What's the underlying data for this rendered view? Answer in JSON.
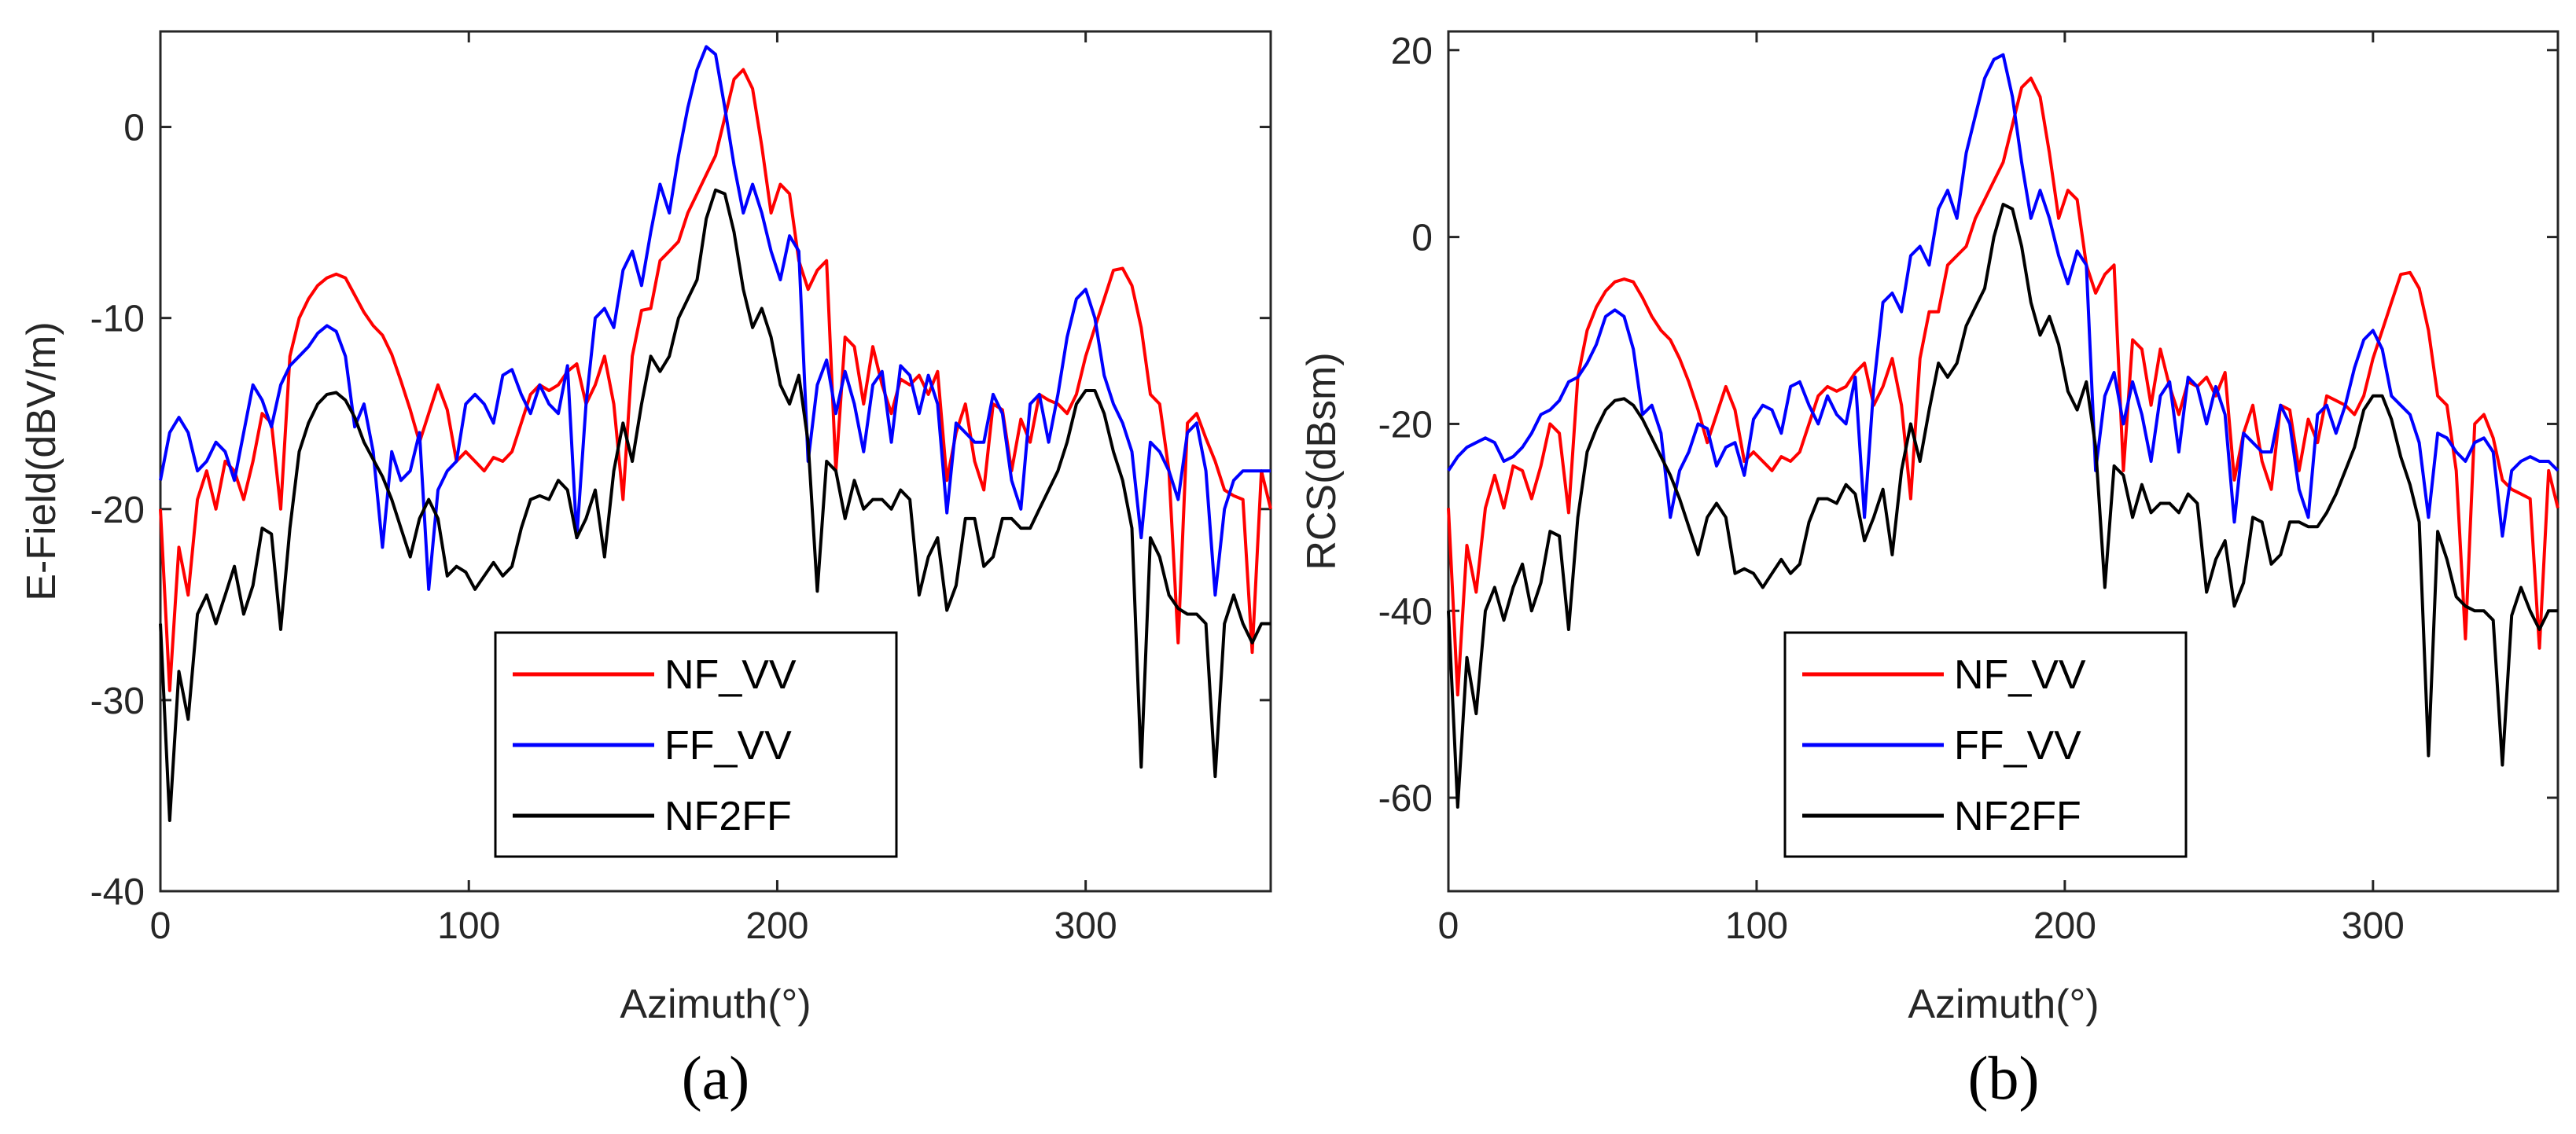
{
  "chart_data": [
    {
      "panel": "(a)",
      "type": "line",
      "title": "",
      "xlabel": "Azimuth(°)",
      "ylabel": "E-Field(dBV/m)",
      "xlim": [
        0,
        360
      ],
      "ylim": [
        -40,
        5
      ],
      "xticks": [
        0,
        100,
        200,
        300
      ],
      "yticks": [
        0,
        -10,
        -20,
        -30,
        -40
      ],
      "grid": false,
      "legend_position": "bottom-right",
      "x": [
        0,
        3,
        6,
        9,
        12,
        15,
        18,
        21,
        24,
        27,
        30,
        33,
        36,
        39,
        42,
        45,
        48,
        51,
        54,
        57,
        60,
        63,
        66,
        69,
        72,
        75,
        78,
        81,
        84,
        87,
        90,
        93,
        96,
        99,
        102,
        105,
        108,
        111,
        114,
        117,
        120,
        123,
        126,
        129,
        132,
        135,
        138,
        141,
        144,
        147,
        150,
        153,
        156,
        159,
        162,
        165,
        168,
        171,
        174,
        177,
        180,
        183,
        186,
        189,
        192,
        195,
        198,
        201,
        204,
        207,
        210,
        213,
        216,
        219,
        222,
        225,
        228,
        231,
        234,
        237,
        240,
        243,
        246,
        249,
        252,
        255,
        258,
        261,
        264,
        267,
        270,
        273,
        276,
        279,
        282,
        285,
        288,
        291,
        294,
        297,
        300,
        303,
        306,
        309,
        312,
        315,
        318,
        321,
        324,
        327,
        330,
        333,
        336,
        339,
        342,
        345,
        348,
        351,
        354,
        357,
        360
      ],
      "series": [
        {
          "name": "NF_VV",
          "color": "#ff0000",
          "values": [
            -20.0,
            -29.5,
            -22.0,
            -24.5,
            -19.5,
            -18.0,
            -20.0,
            -17.5,
            -18.0,
            -19.5,
            -17.5,
            -15.0,
            -15.5,
            -20.0,
            -12.0,
            -10.0,
            -9.0,
            -8.3,
            -7.9,
            -7.7,
            -7.9,
            -8.8,
            -9.7,
            -10.4,
            -10.9,
            -11.9,
            -13.3,
            -14.8,
            -16.5,
            -15.0,
            -13.5,
            -14.8,
            -17.5,
            -17.0,
            -17.5,
            -18.0,
            -17.3,
            -17.5,
            -17.0,
            -15.5,
            -14.0,
            -13.5,
            -13.8,
            -13.5,
            -12.8,
            -12.4,
            -14.5,
            -13.5,
            -12.0,
            -14.5,
            -19.5,
            -12.0,
            -9.6,
            -9.5,
            -7.0,
            -6.5,
            -6.0,
            -4.5,
            -3.5,
            -2.5,
            -1.5,
            0.5,
            2.5,
            3.0,
            2.0,
            -1.0,
            -4.5,
            -3.0,
            -3.5,
            -7.0,
            -8.5,
            -7.5,
            -7.0,
            -18.0,
            -11.0,
            -11.5,
            -14.5,
            -11.5,
            -13.5,
            -15.0,
            -13.2,
            -13.5,
            -13.0,
            -14.0,
            -12.8,
            -18.5,
            -16.0,
            -14.5,
            -17.5,
            -19.0,
            -14.5,
            -14.8,
            -18.0,
            -15.3,
            -16.5,
            -14.0,
            -14.3,
            -14.5,
            -15.0,
            -14.0,
            -12.0,
            -10.5,
            -9.0,
            -7.5,
            -7.4,
            -8.3,
            -10.5,
            -14.0,
            -14.5,
            -18.0,
            -27.0,
            -15.5,
            -15.0,
            -16.3,
            -17.5,
            -19.0,
            -19.3,
            -19.5,
            -27.5,
            -18.0,
            -20.0
          ]
        },
        {
          "name": "FF_VV",
          "color": "#0000ff",
          "values": [
            -18.5,
            -16.0,
            -15.2,
            -16.0,
            -18.0,
            -17.5,
            -16.5,
            -17.0,
            -18.5,
            -16.0,
            -13.5,
            -14.3,
            -15.7,
            -13.5,
            -12.5,
            -12.0,
            -11.5,
            -10.8,
            -10.4,
            -10.7,
            -12.0,
            -15.7,
            -14.5,
            -17.0,
            -22.0,
            -17.0,
            -18.5,
            -18.0,
            -16.0,
            -24.2,
            -19.0,
            -18.0,
            -17.5,
            -14.5,
            -14.0,
            -14.5,
            -15.5,
            -13.0,
            -12.7,
            -14.0,
            -15.0,
            -13.5,
            -14.5,
            -15.0,
            -12.5,
            -21.5,
            -14.5,
            -10.0,
            -9.5,
            -10.5,
            -7.5,
            -6.5,
            -8.3,
            -5.5,
            -3.0,
            -4.5,
            -1.5,
            1.0,
            3.0,
            4.2,
            3.8,
            1.0,
            -2.0,
            -4.5,
            -3.0,
            -4.5,
            -6.5,
            -8.0,
            -5.7,
            -6.5,
            -17.5,
            -13.5,
            -12.2,
            -15.0,
            -12.8,
            -14.5,
            -17.0,
            -13.5,
            -12.8,
            -16.5,
            -12.5,
            -13.0,
            -15.0,
            -13.0,
            -14.5,
            -20.2,
            -15.5,
            -16.0,
            -16.5,
            -16.5,
            -14.0,
            -15.0,
            -18.5,
            -20.0,
            -14.5,
            -14.0,
            -16.5,
            -14.0,
            -11.0,
            -9.0,
            -8.5,
            -10.0,
            -13.0,
            -14.5,
            -15.5,
            -17.0,
            -21.5,
            -16.5,
            -17.0,
            -18.0,
            -19.5,
            -16.0,
            -15.5,
            -18.0,
            -24.5,
            -20.0,
            -18.5,
            -18.0,
            -18.0,
            -18.0,
            -18.0
          ]
        },
        {
          "name": "NF2FF",
          "color": "#000000",
          "values": [
            -26.0,
            -36.3,
            -28.5,
            -31.0,
            -25.5,
            -24.5,
            -26.0,
            -24.5,
            -23.0,
            -25.5,
            -24.0,
            -21.0,
            -21.3,
            -26.3,
            -21.0,
            -17.0,
            -15.5,
            -14.5,
            -14.0,
            -13.9,
            -14.3,
            -15.2,
            -16.5,
            -17.4,
            -18.3,
            -19.5,
            -21.0,
            -22.5,
            -20.5,
            -19.5,
            -20.5,
            -23.5,
            -23.0,
            -23.3,
            -24.2,
            -23.5,
            -22.8,
            -23.5,
            -23.0,
            -21.0,
            -19.5,
            -19.3,
            -19.5,
            -18.5,
            -19.0,
            -21.5,
            -20.5,
            -19.0,
            -22.5,
            -18.0,
            -15.5,
            -17.5,
            -14.5,
            -12.0,
            -12.8,
            -12.0,
            -10.0,
            -9.0,
            -8.0,
            -4.8,
            -3.3,
            -3.5,
            -5.5,
            -8.5,
            -10.5,
            -9.5,
            -11.0,
            -13.5,
            -14.5,
            -13.0,
            -16.5,
            -24.3,
            -17.5,
            -18.0,
            -20.5,
            -18.5,
            -20.0,
            -19.5,
            -19.5,
            -20.0,
            -19.0,
            -19.5,
            -24.5,
            -22.5,
            -21.5,
            -25.3,
            -24.0,
            -20.5,
            -20.5,
            -23.0,
            -22.5,
            -20.5,
            -20.5,
            -21.0,
            -21.0,
            -20.0,
            -19.0,
            -18.0,
            -16.5,
            -14.5,
            -13.8,
            -13.8,
            -15.0,
            -17.0,
            -18.5,
            -21.0,
            -33.5,
            -21.5,
            -22.5,
            -24.5,
            -25.2,
            -25.5,
            -25.5,
            -26.0,
            -34.0,
            -26.0,
            -24.5,
            -26.0,
            -27.0,
            -26.0,
            -26.0
          ]
        }
      ],
      "legend": [
        "NF_VV",
        "FF_VV",
        "NF2FF"
      ]
    },
    {
      "panel": "(b)",
      "type": "line",
      "title": "",
      "xlabel": "Azimuth(°)",
      "ylabel": "RCS(dBsm)",
      "xlim": [
        0,
        360
      ],
      "ylim": [
        -70,
        22
      ],
      "xticks": [
        0,
        100,
        200,
        300
      ],
      "yticks": [
        20,
        0,
        -20,
        -40,
        -60
      ],
      "grid": false,
      "legend_position": "bottom-right",
      "x": [
        0,
        3,
        6,
        9,
        12,
        15,
        18,
        21,
        24,
        27,
        30,
        33,
        36,
        39,
        42,
        45,
        48,
        51,
        54,
        57,
        60,
        63,
        66,
        69,
        72,
        75,
        78,
        81,
        84,
        87,
        90,
        93,
        96,
        99,
        102,
        105,
        108,
        111,
        114,
        117,
        120,
        123,
        126,
        129,
        132,
        135,
        138,
        141,
        144,
        147,
        150,
        153,
        156,
        159,
        162,
        165,
        168,
        171,
        174,
        177,
        180,
        183,
        186,
        189,
        192,
        195,
        198,
        201,
        204,
        207,
        210,
        213,
        216,
        219,
        222,
        225,
        228,
        231,
        234,
        237,
        240,
        243,
        246,
        249,
        252,
        255,
        258,
        261,
        264,
        267,
        270,
        273,
        276,
        279,
        282,
        285,
        288,
        291,
        294,
        297,
        300,
        303,
        306,
        309,
        312,
        315,
        318,
        321,
        324,
        327,
        330,
        333,
        336,
        339,
        342,
        345,
        348,
        351,
        354,
        357,
        360
      ],
      "series": [
        {
          "name": "NF_VV",
          "color": "#ff0000",
          "values": [
            -29.0,
            -49.0,
            -33.0,
            -38.0,
            -29.0,
            -25.5,
            -29.0,
            -24.5,
            -25.0,
            -28.0,
            -24.5,
            -20.0,
            -21.0,
            -29.5,
            -15.0,
            -10.0,
            -7.5,
            -5.8,
            -4.8,
            -4.5,
            -4.8,
            -6.5,
            -8.5,
            -10.0,
            -11.0,
            -13.0,
            -15.5,
            -18.5,
            -22.0,
            -19.0,
            -16.0,
            -18.5,
            -24.0,
            -23.0,
            -24.0,
            -25.0,
            -23.5,
            -24.0,
            -23.0,
            -20.0,
            -17.0,
            -16.0,
            -16.5,
            -16.0,
            -14.5,
            -13.5,
            -18.0,
            -16.0,
            -13.0,
            -18.0,
            -28.0,
            -13.0,
            -8.0,
            -8.0,
            -3.0,
            -2.0,
            -1.0,
            2.0,
            4.0,
            6.0,
            8.0,
            12.0,
            16.0,
            17.0,
            15.0,
            9.0,
            2.0,
            5.0,
            4.0,
            -3.0,
            -6.0,
            -4.0,
            -3.0,
            -25.0,
            -11.0,
            -12.0,
            -18.0,
            -12.0,
            -16.0,
            -19.0,
            -15.5,
            -16.0,
            -15.0,
            -17.0,
            -14.5,
            -26.0,
            -21.0,
            -18.0,
            -24.0,
            -27.0,
            -18.0,
            -18.5,
            -25.0,
            -19.5,
            -22.0,
            -17.0,
            -17.5,
            -18.0,
            -19.0,
            -17.0,
            -13.0,
            -10.0,
            -7.0,
            -4.0,
            -3.8,
            -5.5,
            -10.0,
            -17.0,
            -18.0,
            -25.0,
            -43.0,
            -20.0,
            -19.0,
            -21.5,
            -26.0,
            -27.0,
            -27.5,
            -28.0,
            -44.0,
            -25.0,
            -29.0
          ]
        },
        {
          "name": "FF_VV",
          "color": "#0000ff",
          "values": [
            -25.0,
            -23.5,
            -22.5,
            -22.0,
            -21.5,
            -22.0,
            -24.0,
            -23.5,
            -22.5,
            -21.0,
            -19.0,
            -18.5,
            -17.5,
            -15.5,
            -15.0,
            -13.5,
            -11.5,
            -8.5,
            -7.8,
            -8.5,
            -12.0,
            -19.0,
            -18.0,
            -21.0,
            -30.0,
            -25.0,
            -23.0,
            -20.0,
            -20.5,
            -24.5,
            -22.5,
            -22.0,
            -25.5,
            -19.5,
            -18.0,
            -18.5,
            -21.0,
            -16.0,
            -15.5,
            -18.0,
            -20.0,
            -17.0,
            -19.0,
            -20.0,
            -15.0,
            -30.0,
            -16.0,
            -7.0,
            -6.0,
            -8.0,
            -2.0,
            -1.0,
            -3.0,
            3.0,
            5.0,
            2.0,
            9.0,
            13.0,
            17.0,
            19.0,
            19.5,
            15.0,
            8.0,
            2.0,
            5.0,
            2.0,
            -2.0,
            -5.0,
            -1.5,
            -3.0,
            -25.0,
            -17.0,
            -14.5,
            -20.0,
            -15.5,
            -19.0,
            -24.0,
            -17.0,
            -15.5,
            -23.0,
            -15.0,
            -16.0,
            -20.0,
            -16.0,
            -19.0,
            -30.5,
            -21.0,
            -22.0,
            -23.0,
            -23.0,
            -18.0,
            -20.0,
            -27.0,
            -30.0,
            -19.0,
            -18.0,
            -21.0,
            -18.0,
            -14.0,
            -11.0,
            -10.0,
            -12.0,
            -17.0,
            -18.0,
            -19.0,
            -22.0,
            -30.0,
            -21.0,
            -21.5,
            -23.0,
            -24.0,
            -22.0,
            -21.5,
            -23.0,
            -32.0,
            -25.0,
            -24.0,
            -23.5,
            -24.0,
            -24.0,
            -25.0
          ]
        },
        {
          "name": "NF2FF",
          "color": "#000000",
          "values": [
            -40.0,
            -61.0,
            -45.0,
            -51.0,
            -40.0,
            -37.5,
            -41.0,
            -37.5,
            -35.0,
            -40.0,
            -37.0,
            -31.5,
            -32.0,
            -42.0,
            -30.0,
            -23.0,
            -20.5,
            -18.5,
            -17.5,
            -17.3,
            -18.0,
            -19.5,
            -21.5,
            -23.5,
            -25.5,
            -28.0,
            -31.0,
            -34.0,
            -30.0,
            -28.5,
            -30.0,
            -36.0,
            -35.5,
            -36.0,
            -37.5,
            -36.0,
            -34.5,
            -36.0,
            -35.0,
            -30.5,
            -28.0,
            -28.0,
            -28.5,
            -26.5,
            -27.5,
            -32.5,
            -30.0,
            -27.0,
            -34.0,
            -25.0,
            -20.0,
            -24.0,
            -18.5,
            -13.5,
            -15.0,
            -13.5,
            -9.5,
            -7.5,
            -5.5,
            0.0,
            3.5,
            3.0,
            -1.0,
            -7.0,
            -10.5,
            -8.5,
            -11.5,
            -16.5,
            -18.5,
            -15.5,
            -22.5,
            -37.5,
            -24.5,
            -25.5,
            -30.0,
            -26.5,
            -29.5,
            -28.5,
            -28.5,
            -29.5,
            -27.5,
            -28.5,
            -38.0,
            -34.5,
            -32.5,
            -39.5,
            -37.0,
            -30.0,
            -30.5,
            -35.0,
            -34.0,
            -30.5,
            -30.5,
            -31.0,
            -31.0,
            -29.5,
            -27.5,
            -25.0,
            -22.5,
            -18.5,
            -17.0,
            -17.0,
            -19.5,
            -23.5,
            -26.5,
            -30.5,
            -55.5,
            -31.5,
            -34.5,
            -38.5,
            -39.5,
            -40.0,
            -40.0,
            -41.0,
            -56.5,
            -40.5,
            -37.5,
            -40.0,
            -42.0,
            -40.0,
            -40.0
          ]
        }
      ],
      "legend": [
        "NF_VV",
        "FF_VV",
        "NF2FF"
      ]
    }
  ]
}
